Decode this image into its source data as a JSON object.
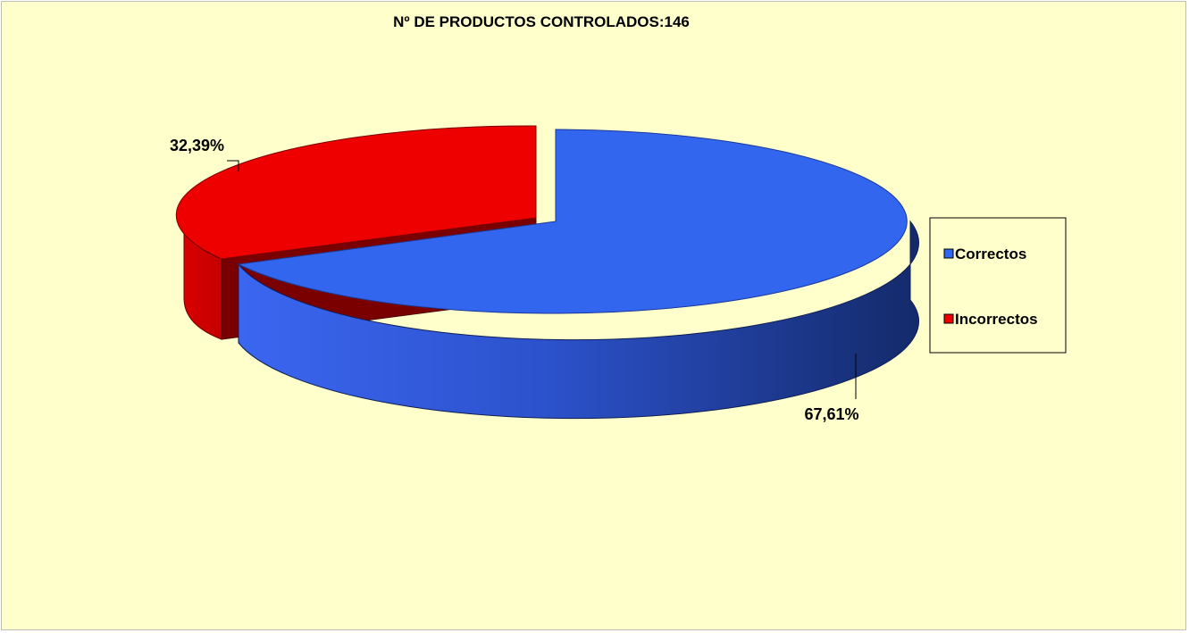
{
  "colors": {
    "background": "#ffffcc",
    "correctos": "#3366ee",
    "incorrectos": "#ee0000"
  },
  "chart_data": {
    "type": "pie",
    "title": "Nº DE PRODUCTOS CONTROLADOS:146",
    "categories": [
      "Correctos",
      "Incorrectos"
    ],
    "values": [
      67.61,
      32.39
    ],
    "data_labels": [
      "67,61%",
      "32,39%"
    ],
    "legend_position": "right",
    "style": "3d-exploded"
  }
}
